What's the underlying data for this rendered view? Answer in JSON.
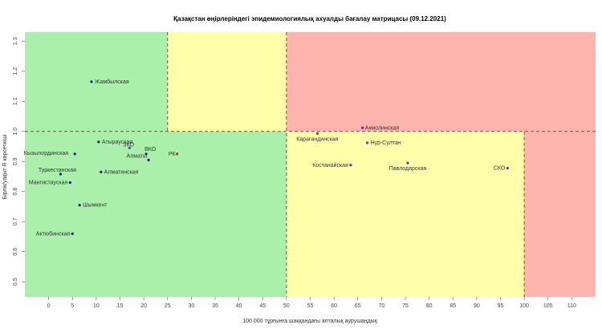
{
  "chart_data": {
    "type": "scatter",
    "title": "Қазақстан өңірлеріндегі эпидемиологиялық ахуалды бағалау матрицасы  (09.12.2021)",
    "xlabel": "100 000 тұрғынға шаққандағы апталық аурушаңдық",
    "ylabel": "Бірлік/уақыт R көрсеткіші",
    "xlim": [
      -5,
      115
    ],
    "ylim": [
      0.45,
      1.33
    ],
    "xticks": [
      0,
      5,
      10,
      15,
      20,
      25,
      30,
      35,
      40,
      45,
      50,
      55,
      60,
      65,
      70,
      75,
      80,
      85,
      90,
      95,
      100,
      105,
      110
    ],
    "yticks": [
      0.5,
      0.6,
      0.7,
      0.8,
      0.9,
      1.0,
      1.1,
      1.2,
      1.3
    ],
    "threshold_x": [
      25,
      50,
      100
    ],
    "threshold_y": 1.0,
    "zones": [
      {
        "x": [
          -5,
          25
        ],
        "y": [
          1.0,
          1.33
        ],
        "color": "#aaf0aa"
      },
      {
        "x": [
          25,
          50
        ],
        "y": [
          1.0,
          1.33
        ],
        "color": "#ffffaa"
      },
      {
        "x": [
          50,
          115
        ],
        "y": [
          1.0,
          1.33
        ],
        "color": "#ffb4ae"
      },
      {
        "x": [
          -5,
          50
        ],
        "y": [
          0.45,
          1.0
        ],
        "color": "#aaf0aa"
      },
      {
        "x": [
          50,
          100
        ],
        "y": [
          0.45,
          1.0
        ],
        "color": "#ffffaa"
      },
      {
        "x": [
          100,
          115
        ],
        "y": [
          0.45,
          1.0
        ],
        "color": "#ffb4ae"
      }
    ],
    "points": [
      {
        "label": "Жамбылская",
        "x": 9,
        "y": 1.165,
        "color": "#1a237e",
        "text_color": "#333333"
      },
      {
        "label": "Акмолинская",
        "x": 66,
        "y": 1.012,
        "color": "#7b1fa2",
        "text_color": "#333333"
      },
      {
        "label": "Карагандинская",
        "x": 56.5,
        "y": 0.993,
        "color": "#6d4c41",
        "text_color": "#333333"
      },
      {
        "label": "Нур-Султан",
        "x": 67,
        "y": 0.962,
        "color": "#5e35b1",
        "text_color": "#333333"
      },
      {
        "label": "Атырауская",
        "x": 10.5,
        "y": 0.965,
        "color": "#1a237e",
        "text_color": "#333333"
      },
      {
        "label": "ЗКО",
        "x": 17,
        "y": 0.945,
        "color": "#1565c0",
        "text_color": "#333333"
      },
      {
        "label": "Кызылординская",
        "x": 5.5,
        "y": 0.925,
        "color": "#1a237e",
        "text_color": "#333333"
      },
      {
        "label": "ВКО",
        "x": 20.5,
        "y": 0.925,
        "color": "#1a237e",
        "text_color": "#333333"
      },
      {
        "label": "РК",
        "x": 27,
        "y": 0.925,
        "color": "#c62828",
        "text_color": "#c62828"
      },
      {
        "label": "Алматы",
        "x": 21,
        "y": 0.905,
        "color": "#1a237e",
        "text_color": "#333333"
      },
      {
        "label": "Костанайская",
        "x": 63.5,
        "y": 0.888,
        "color": "#5e35b1",
        "text_color": "#333333"
      },
      {
        "label": "Павлодарская",
        "x": 75.5,
        "y": 0.895,
        "color": "#5e35b1",
        "text_color": "#333333"
      },
      {
        "label": "СКО",
        "x": 96.5,
        "y": 0.878,
        "color": "#5e35b1",
        "text_color": "#333333"
      },
      {
        "label": "Туркестанская",
        "x": 2.5,
        "y": 0.858,
        "color": "#1a237e",
        "text_color": "#333333"
      },
      {
        "label": "Алматинская",
        "x": 11,
        "y": 0.865,
        "color": "#1a237e",
        "text_color": "#333333"
      },
      {
        "label": "Мангистауская",
        "x": 4.5,
        "y": 0.83,
        "color": "#1a237e",
        "text_color": "#333333"
      },
      {
        "label": "Шымкент",
        "x": 6.5,
        "y": 0.755,
        "color": "#1a237e",
        "text_color": "#333333"
      },
      {
        "label": "Актюбинская",
        "x": 5,
        "y": 0.66,
        "color": "#1a237e",
        "text_color": "#333333"
      }
    ]
  }
}
